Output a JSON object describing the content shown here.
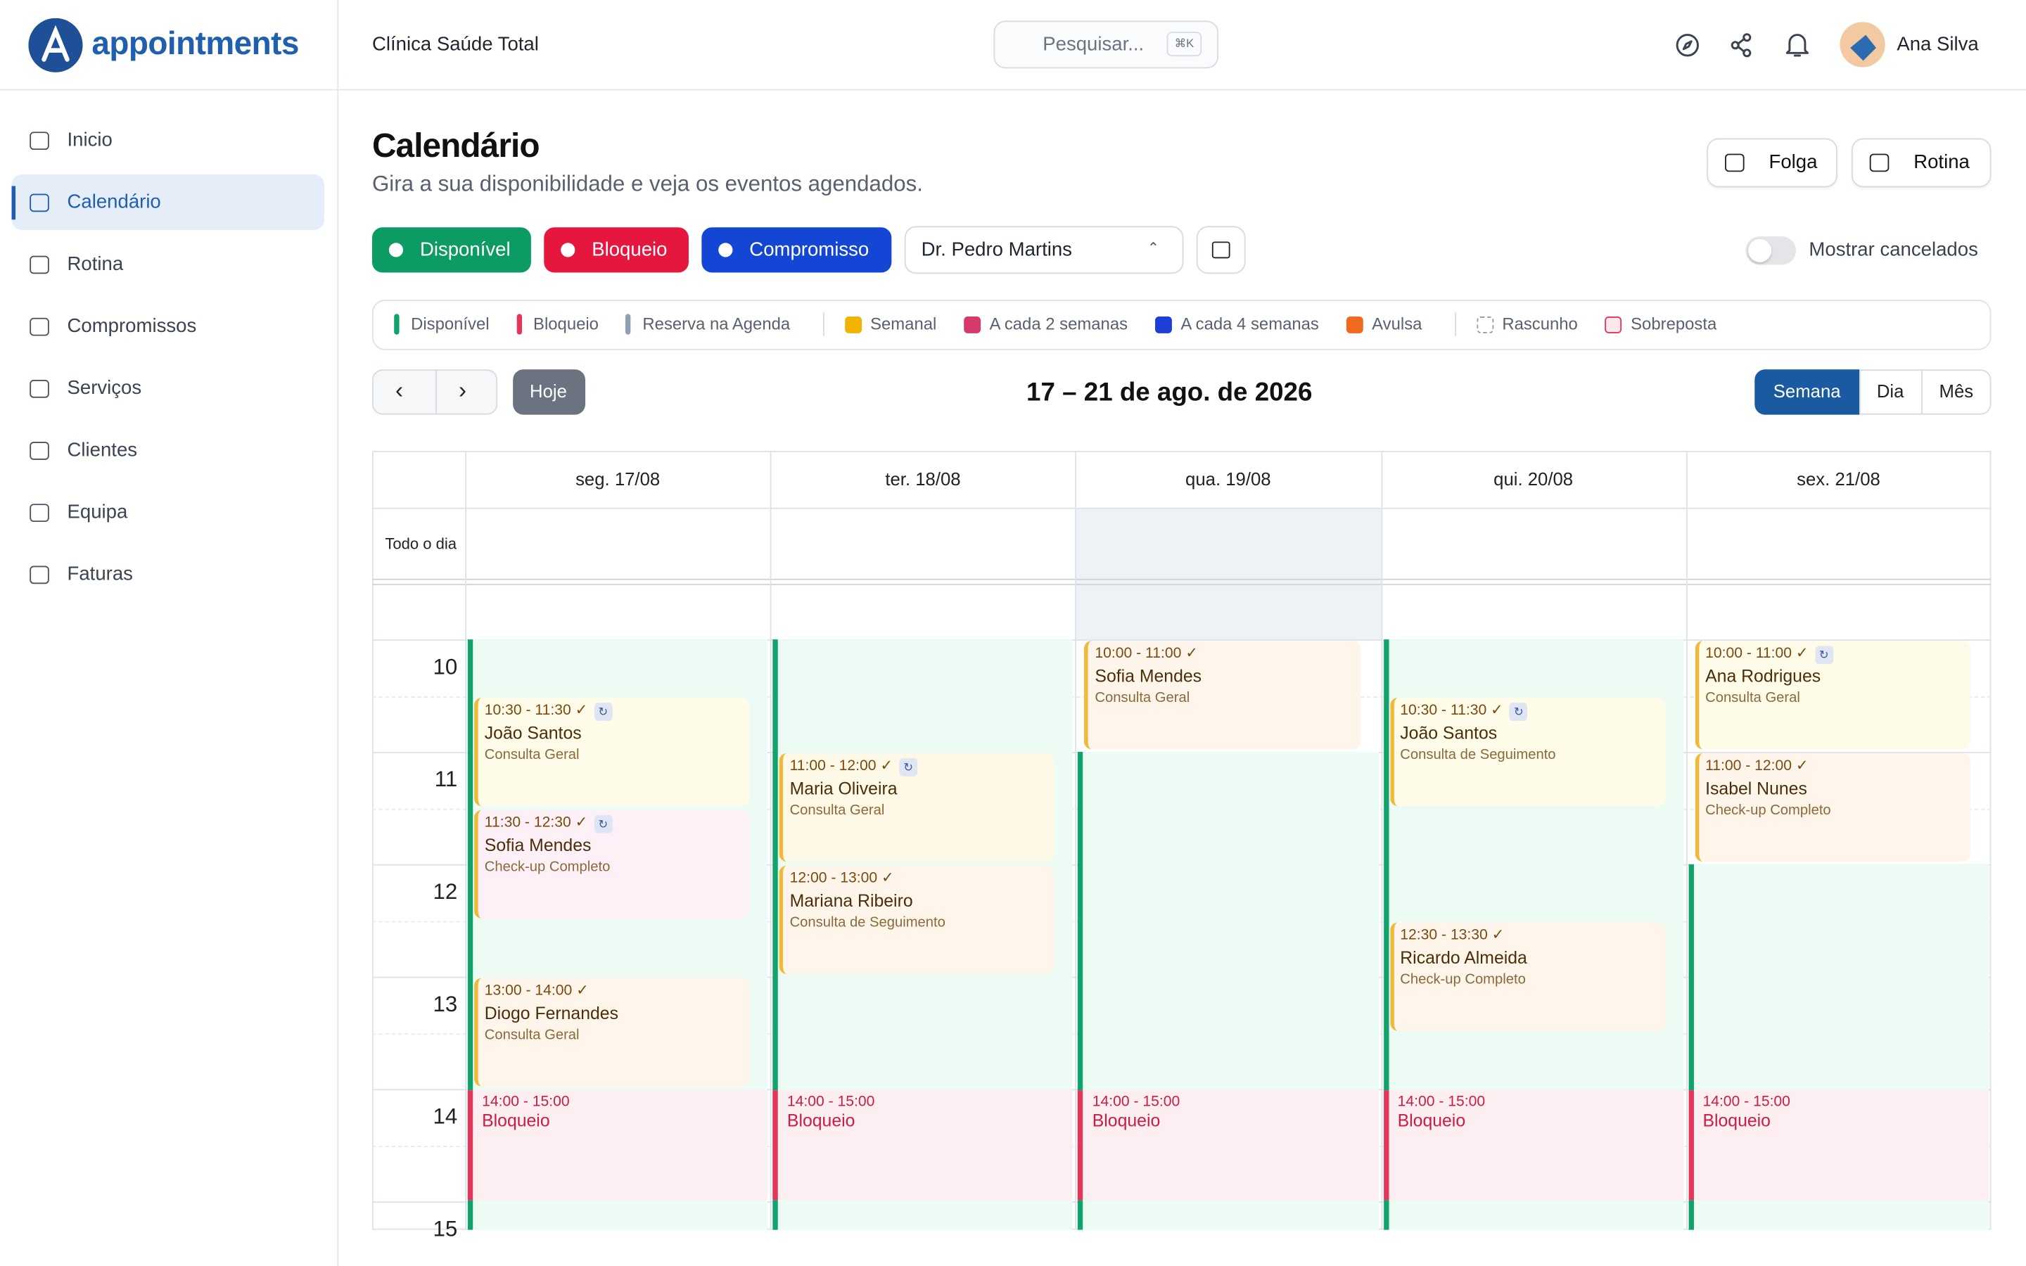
{
  "brand": "appointments",
  "header": {
    "clinic": "Clínica Saúde Total",
    "search": "Pesquisar...",
    "shortcut": "⌘K",
    "user": "Ana Silva"
  },
  "sidebar": {
    "items": [
      "Inicio",
      "Calendário",
      "Rotina",
      "Compromissos",
      "Serviços",
      "Clientes",
      "Equipa",
      "Faturas"
    ],
    "active": 1
  },
  "page": {
    "title": "Calendário",
    "subtitle": "Gira a sua disponibilidade e veja os eventos agendados.",
    "actions": [
      "Folga",
      "Rotina"
    ]
  },
  "filters": {
    "chips": [
      {
        "label": "Disponível",
        "color": "#0b9b63"
      },
      {
        "label": "Bloqueio",
        "color": "#e5173f"
      },
      {
        "label": "Compromisso",
        "color": "#1446d6"
      }
    ],
    "professional": "Dr. Pedro Martins",
    "toggle": "Mostrar cancelados"
  },
  "legend": [
    {
      "label": "Disponível",
      "color": "#10a36b",
      "shape": "bar"
    },
    {
      "label": "Bloqueio",
      "color": "#e2375a",
      "shape": "bar"
    },
    {
      "label": "Reserva na Agenda",
      "color": "#8fa0b3",
      "shape": "bar"
    },
    {
      "label": "Semanal",
      "color": "#f0b400",
      "shape": "square"
    },
    {
      "label": "A cada 2 semanas",
      "color": "#d63a6a",
      "shape": "square"
    },
    {
      "label": "A cada 4 semanas",
      "color": "#1d3fd6",
      "shape": "square"
    },
    {
      "label": "Avulsa",
      "color": "#f06a1e",
      "shape": "square"
    },
    {
      "label": "Rascunho",
      "color": "#999999",
      "shape": "dashed"
    },
    {
      "label": "Sobreposta",
      "color": "#e2375a",
      "shape": "outline"
    }
  ],
  "calendar_nav": {
    "today": "Hoje",
    "range": "17 – 21 de ago. de 2026",
    "views": [
      "Semana",
      "Dia",
      "Mês"
    ],
    "active_view": 0
  },
  "calendar": {
    "all_day": "Todo o dia",
    "hours": [
      "10",
      "11",
      "12",
      "13",
      "14",
      "15"
    ],
    "highlight_day": 2,
    "days": [
      {
        "label": "seg. 17/08",
        "events": [
          {
            "time": "10:30 - 11:30 ✓",
            "name": "João Santos",
            "service": "Consulta Geral",
            "recurring": true,
            "color": "#fefbe8"
          },
          {
            "time": "11:30 - 12:30 ✓",
            "name": "Sofia Mendes",
            "service": "Check-up Completo",
            "recurring": true,
            "color": "#fdf0f6"
          },
          {
            "time": "13:00 - 14:00 ✓",
            "name": "Diogo Fernandes",
            "service": "Consulta Geral",
            "color": "#fff5ea"
          },
          {
            "time": "14:00 - 15:00",
            "name": "Bloqueio",
            "kind": "block"
          }
        ]
      },
      {
        "label": "ter. 18/08",
        "events": [
          {
            "time": "11:00 - 12:00 ✓",
            "name": "Maria Oliveira",
            "service": "Consulta Geral",
            "recurring": true,
            "color": "#fef9e6"
          },
          {
            "time": "12:00 - 13:00 ✓",
            "name": "Mariana Ribeiro",
            "service": "Consulta de Seguimento",
            "color": "#fff5ea"
          },
          {
            "time": "14:00 - 15:00",
            "name": "Bloqueio",
            "kind": "block"
          }
        ]
      },
      {
        "label": "qua. 19/08",
        "events": [
          {
            "time": "10:00 - 11:00 ✓",
            "name": "Sofia Mendes",
            "service": "Consulta Geral",
            "color": "#fff5ea"
          },
          {
            "time": "14:00 - 15:00",
            "name": "Bloqueio",
            "kind": "block"
          }
        ]
      },
      {
        "label": "qui. 20/08",
        "events": [
          {
            "time": "10:30 - 11:30 ✓",
            "name": "João Santos",
            "service": "Consulta de Seguimento",
            "recurring": true,
            "color": "#fefbe8"
          },
          {
            "time": "12:30 - 13:30 ✓",
            "name": "Ricardo Almeida",
            "service": "Check-up Completo",
            "color": "#fff5ea"
          },
          {
            "time": "14:00 - 15:00",
            "name": "Bloqueio",
            "kind": "block"
          }
        ]
      },
      {
        "label": "sex. 21/08",
        "events": [
          {
            "time": "10:00 - 11:00 ✓",
            "name": "Ana Rodrigues",
            "service": "Consulta Geral",
            "recurring": true,
            "color": "#fefbe8"
          },
          {
            "time": "11:00 - 12:00 ✓",
            "name": "Isabel Nunes",
            "service": "Check-up Completo",
            "color": "#fff5ea"
          },
          {
            "time": "14:00 - 15:00",
            "name": "Bloqueio",
            "kind": "block"
          }
        ]
      }
    ]
  }
}
